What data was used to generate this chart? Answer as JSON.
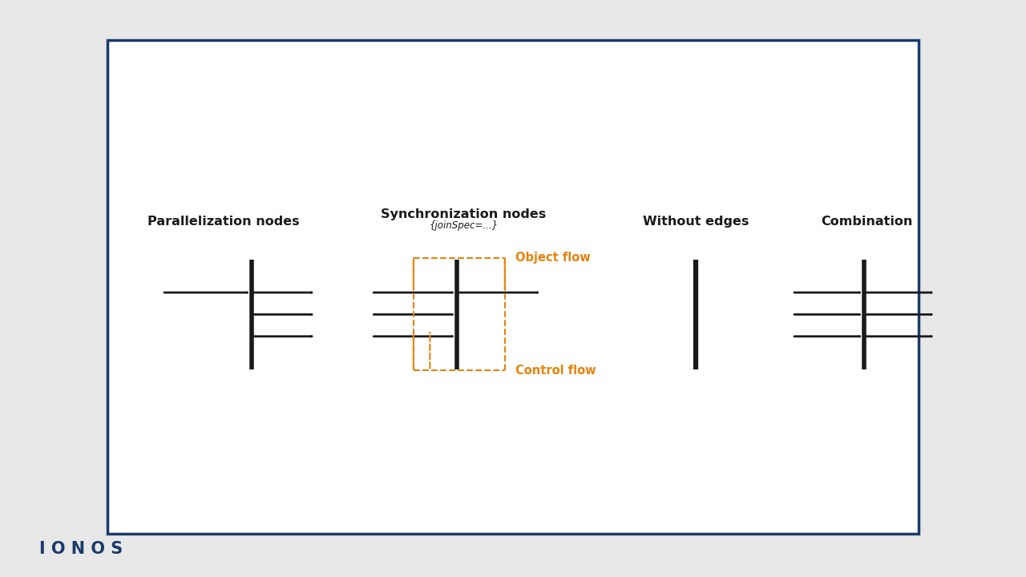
{
  "bg_outer": "#e8e8e8",
  "bg_inner": "#ffffff",
  "border_color": "#1a3a6b",
  "border_lw": 2.5,
  "arrow_color": "#1a1a1a",
  "orange_color": "#e8820a",
  "bar_color": "#1a1a1a",
  "label_color": "#1a1a1a",
  "para_label": "Parallelization nodes",
  "sync_label": "Synchronization nodes",
  "sync_sublabel": "{joinSpec=...}",
  "we_label": "Without edges",
  "comb_label": "Combination",
  "obj_flow_label": "Object flow",
  "ctrl_flow_label": "Control flow",
  "ionos_color": "#1a3a6b",
  "ionos_text": "I O N O S"
}
